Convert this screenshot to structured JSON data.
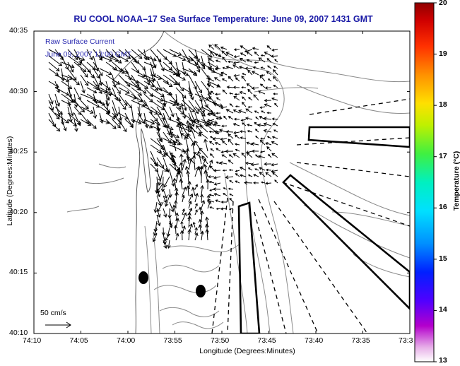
{
  "title": "RU COOL   NOAA–17  Sea Surface Temperature:  June 09, 2007 1431 GMT",
  "inset_lines": [
    "Raw Surface Current",
    "June 09, 2007 13:00 GMT"
  ],
  "scale_label": "50 cm/s",
  "xlabel": "Longitude (Degrees:Minutes)",
  "ylabel": "Latitude (Degrees:Minutes)",
  "colorbar_label": "Temperature (°C)",
  "x_ticks": [
    "74:10",
    "74:05",
    "74:00",
    "73:55",
    "73:50",
    "73:45",
    "73:40",
    "73:35",
    "73:3"
  ],
  "y_ticks": [
    "40:35",
    "40:30",
    "40:25",
    "40:20",
    "40:15",
    "40:10"
  ],
  "colorbar_ticks": [
    "20",
    "19",
    "18",
    "17",
    "16",
    "15",
    "14",
    "13"
  ],
  "colors": {
    "title": "#1a1aa6",
    "inset_text": "#2a2ab0",
    "frame": "#000000"
  }
}
